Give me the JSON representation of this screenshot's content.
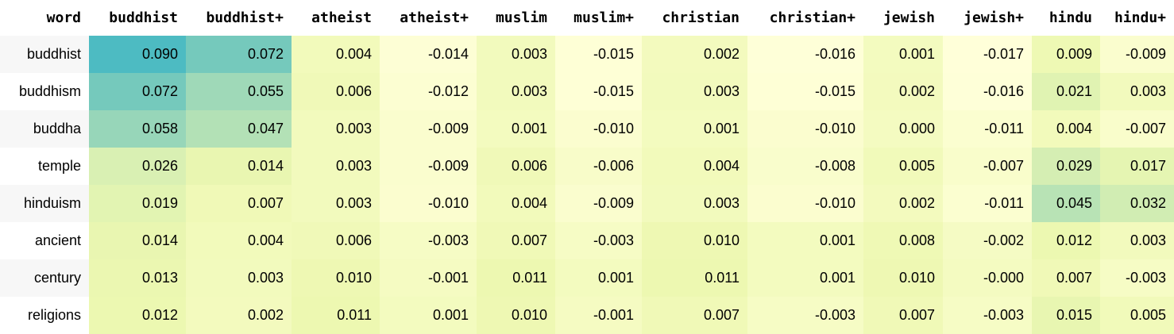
{
  "table": {
    "columns": [
      "word",
      "buddhist",
      "buddhist+",
      "atheist",
      "atheist+",
      "muslim",
      "muslim+",
      "christian",
      "christian+",
      "jewish",
      "jewish+",
      "hindu",
      "hindu+"
    ],
    "rows": [
      {
        "word": "buddhist",
        "values": [
          "0.090",
          "0.072",
          "0.004",
          "-0.014",
          "0.003",
          "-0.015",
          "0.002",
          "-0.016",
          "0.001",
          "-0.017",
          "0.009",
          "-0.009"
        ]
      },
      {
        "word": "buddhism",
        "values": [
          "0.072",
          "0.055",
          "0.006",
          "-0.012",
          "0.003",
          "-0.015",
          "0.003",
          "-0.015",
          "0.002",
          "-0.016",
          "0.021",
          "0.003"
        ]
      },
      {
        "word": "buddha",
        "values": [
          "0.058",
          "0.047",
          "0.003",
          "-0.009",
          "0.001",
          "-0.010",
          "0.001",
          "-0.010",
          "0.000",
          "-0.011",
          "0.004",
          "-0.007"
        ]
      },
      {
        "word": "temple",
        "values": [
          "0.026",
          "0.014",
          "0.003",
          "-0.009",
          "0.006",
          "-0.006",
          "0.004",
          "-0.008",
          "0.005",
          "-0.007",
          "0.029",
          "0.017"
        ]
      },
      {
        "word": "hinduism",
        "values": [
          "0.019",
          "0.007",
          "0.003",
          "-0.010",
          "0.004",
          "-0.009",
          "0.003",
          "-0.010",
          "0.002",
          "-0.011",
          "0.045",
          "0.032"
        ]
      },
      {
        "word": "ancient",
        "values": [
          "0.014",
          "0.004",
          "0.006",
          "-0.003",
          "0.007",
          "-0.003",
          "0.010",
          "0.001",
          "0.008",
          "-0.002",
          "0.012",
          "0.003"
        ]
      },
      {
        "word": "century",
        "values": [
          "0.013",
          "0.003",
          "0.010",
          "-0.001",
          "0.011",
          "0.001",
          "0.011",
          "0.001",
          "0.010",
          "-0.000",
          "0.007",
          "-0.003"
        ]
      },
      {
        "word": "religions",
        "values": [
          "0.012",
          "0.002",
          "0.011",
          "0.001",
          "0.010",
          "-0.001",
          "0.007",
          "-0.003",
          "0.007",
          "-0.003",
          "0.015",
          "0.005"
        ]
      }
    ]
  },
  "colors": {
    "scale": [
      "#ffffd9",
      "#edf8b1",
      "#c7e9b4",
      "#7fcdbb",
      "#41b6c4"
    ],
    "label_bg": "#f7f7f7"
  }
}
